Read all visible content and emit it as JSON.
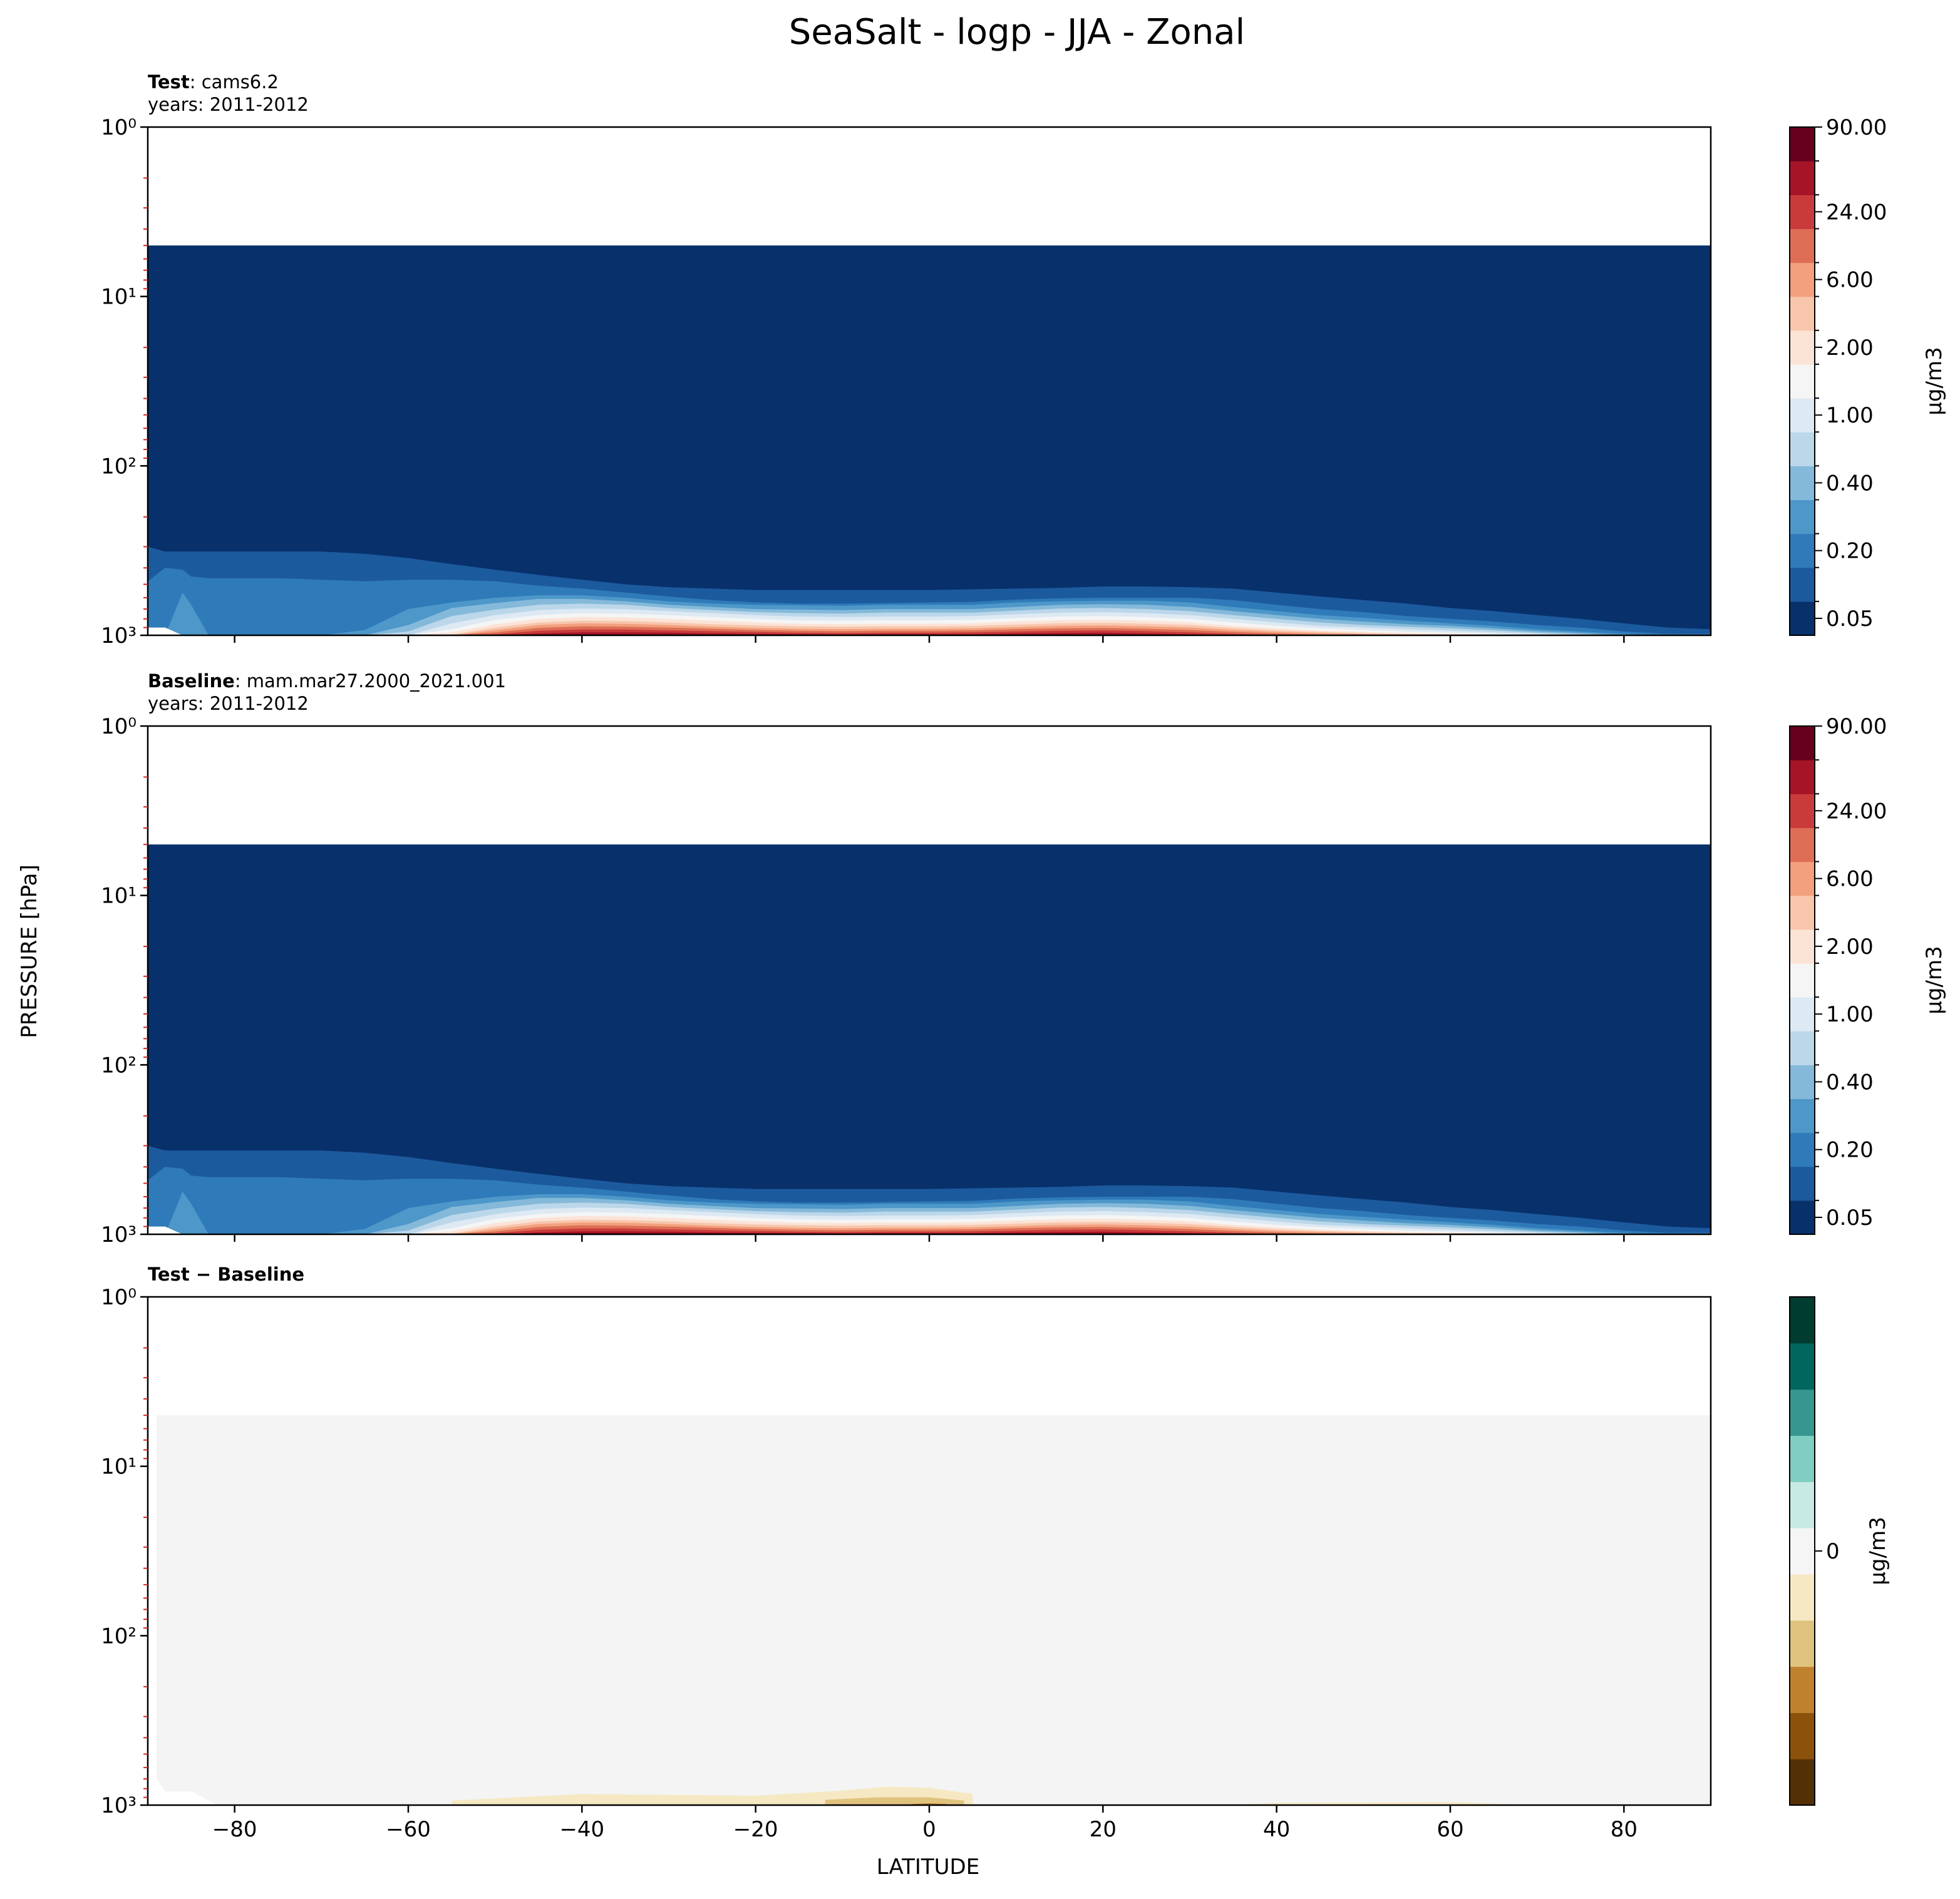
{
  "figure": {
    "title": "SeaSalt - logp - JJA - Zonal",
    "ylabel": "PRESSURE [hPa]",
    "xlabel": "LATITUDE"
  },
  "panels": [
    {
      "id": "test",
      "header_bold": "Test",
      "header_rest": ": cams6.2",
      "subheader": "years: 2011-2012",
      "cbar_label": "μg/m3",
      "cbar_ticks": [
        "0.05",
        "0.20",
        "0.40",
        "1.00",
        "2.00",
        "6.00",
        "24.00",
        "90.00"
      ]
    },
    {
      "id": "baseline",
      "header_bold": "Baseline",
      "header_rest": ": mam.mar27.2000_2021.001",
      "subheader": "years: 2011-2012",
      "cbar_label": "μg/m3",
      "cbar_ticks": [
        "0.05",
        "0.20",
        "0.40",
        "1.00",
        "2.00",
        "6.00",
        "24.00",
        "90.00"
      ]
    },
    {
      "id": "diff",
      "header_bold": "Test − Baseline",
      "header_rest": "",
      "subheader": "",
      "cbar_label": "μg/m3",
      "cbar_ticks": [
        "0"
      ]
    }
  ],
  "colors": {
    "abs_cmap": [
      "#08306b",
      "#1c5a9e",
      "#2f7ab9",
      "#4d97c9",
      "#85b9d9",
      "#bcd7ea",
      "#dde9f3",
      "#f5f5f5",
      "#fbe3d6",
      "#f8c6ac",
      "#f2a07d",
      "#dd6e55",
      "#c93a3b",
      "#a61527",
      "#67001f"
    ],
    "diff_cmap": [
      "#543005",
      "#8c510a",
      "#bf812d",
      "#dfc27d",
      "#f6e8c3",
      "#f5f5f5",
      "#c7eae5",
      "#80cdc1",
      "#35978f",
      "#01665e",
      "#003c30"
    ],
    "background_fill": "#f3f4f3"
  },
  "chart_data": {
    "type": "contour",
    "x": {
      "label": "LATITUDE",
      "range": [
        -90,
        90
      ],
      "ticks": [
        -80,
        -60,
        -40,
        -20,
        0,
        20,
        40,
        60,
        80
      ]
    },
    "y": {
      "label": "PRESSURE [hPa]",
      "scale": "log",
      "inverted": true,
      "range": [
        1,
        1000
      ],
      "tick_labels": [
        "10⁰",
        "10¹",
        "10²",
        "10³"
      ],
      "data_top_hPa": 5
    },
    "abs_levels": [
      "0.05",
      "0.20",
      "0.40",
      "1.00",
      "2.00",
      "6.00",
      "24.00",
      "90.00"
    ],
    "abs_level_boundaries_from_level_0": {
      "x": [
        -90,
        -88,
        -86,
        -85,
        -83,
        -80,
        -75,
        -70,
        -65,
        -60,
        -55,
        -50,
        -45,
        -40,
        -35,
        -30,
        -25,
        -20,
        -15,
        -10,
        -5,
        0,
        5,
        10,
        15,
        20,
        25,
        30,
        35,
        40,
        45,
        50,
        55,
        60,
        65,
        70,
        75,
        80,
        85,
        90
      ],
      "comment_level": "pressure [hPa] where concentration exceeds each band; index 1 = first band above background",
      "p": [
        [
          300,
          320,
          320,
          320,
          320,
          320,
          320,
          320,
          330,
          350,
          380,
          410,
          440,
          470,
          500,
          520,
          530,
          540,
          540,
          540,
          540,
          540,
          535,
          530,
          525,
          515,
          515,
          520,
          530,
          560,
          590,
          620,
          650,
          690,
          720,
          760,
          800,
          850,
          900,
          920
        ],
        [
          480,
          400,
          410,
          450,
          460,
          460,
          460,
          470,
          480,
          470,
          470,
          480,
          510,
          530,
          560,
          590,
          620,
          640,
          650,
          650,
          645,
          640,
          635,
          615,
          605,
          600,
          600,
          600,
          620,
          660,
          700,
          730,
          770,
          800,
          830,
          870,
          900,
          950,
          980,
          980
        ],
        [
          1000,
          1000,
          560,
          660,
          1000,
          1000,
          1000,
          1000,
          930,
          700,
          640,
          600,
          580,
          580,
          600,
          630,
          650,
          660,
          665,
          670,
          660,
          660,
          660,
          640,
          630,
          625,
          625,
          640,
          680,
          720,
          760,
          790,
          820,
          850,
          880,
          920,
          950,
          980,
          1000,
          1000
        ],
        [
          1000,
          1000,
          1000,
          1000,
          1000,
          1000,
          1000,
          1000,
          1000,
          870,
          690,
          645,
          610,
          610,
          630,
          660,
          680,
          700,
          705,
          710,
          700,
          700,
          700,
          680,
          660,
          655,
          660,
          680,
          720,
          760,
          800,
          830,
          860,
          880,
          910,
          945,
          970,
          1000,
          1000,
          1000
        ],
        [
          1000,
          1000,
          1000,
          1000,
          1000,
          1000,
          1000,
          1000,
          1000,
          950,
          770,
          705,
          660,
          650,
          660,
          690,
          710,
          730,
          740,
          745,
          735,
          735,
          735,
          715,
          695,
          690,
          700,
          720,
          760,
          800,
          840,
          870,
          890,
          910,
          935,
          965,
          985,
          1000,
          1000,
          1000
        ],
        [
          1000,
          1000,
          1000,
          1000,
          1000,
          1000,
          1000,
          1000,
          1000,
          1000,
          850,
          760,
          710,
          695,
          700,
          720,
          740,
          760,
          775,
          780,
          775,
          775,
          770,
          750,
          735,
          730,
          740,
          760,
          800,
          840,
          880,
          900,
          920,
          940,
          960,
          980,
          1000,
          1000,
          1000,
          1000
        ],
        [
          1000,
          1000,
          1000,
          1000,
          1000,
          1000,
          1000,
          1000,
          1000,
          1000,
          920,
          810,
          760,
          740,
          745,
          760,
          780,
          800,
          815,
          820,
          815,
          815,
          810,
          790,
          775,
          770,
          780,
          800,
          840,
          880,
          910,
          930,
          950,
          965,
          980,
          995,
          1000,
          1000,
          1000,
          1000
        ],
        [
          1000,
          1000,
          1000,
          1000,
          1000,
          1000,
          1000,
          1000,
          1000,
          1000,
          960,
          860,
          800,
          780,
          785,
          800,
          820,
          840,
          855,
          860,
          855,
          855,
          850,
          830,
          815,
          810,
          820,
          840,
          880,
          910,
          940,
          955,
          970,
          980,
          990,
          1000,
          1000,
          1000,
          1000,
          1000
        ],
        [
          1000,
          1000,
          1000,
          1000,
          1000,
          1000,
          1000,
          1000,
          1000,
          1000,
          990,
          900,
          840,
          820,
          825,
          840,
          860,
          875,
          885,
          890,
          885,
          885,
          880,
          865,
          850,
          845,
          855,
          870,
          905,
          935,
          955,
          970,
          985,
          990,
          1000,
          1000,
          1000,
          1000,
          1000,
          1000
        ],
        [
          1000,
          1000,
          1000,
          1000,
          1000,
          1000,
          1000,
          1000,
          1000,
          1000,
          1000,
          930,
          870,
          850,
          855,
          870,
          890,
          905,
          915,
          920,
          915,
          915,
          910,
          895,
          880,
          875,
          885,
          900,
          930,
          955,
          970,
          985,
          995,
          1000,
          1000,
          1000,
          1000,
          1000,
          1000,
          1000
        ],
        [
          1000,
          1000,
          1000,
          1000,
          1000,
          1000,
          1000,
          1000,
          1000,
          1000,
          1000,
          960,
          905,
          885,
          890,
          900,
          915,
          930,
          940,
          945,
          940,
          940,
          935,
          920,
          910,
          905,
          915,
          930,
          955,
          975,
          990,
          1000,
          1000,
          1000,
          1000,
          1000,
          1000,
          1000,
          1000,
          1000
        ],
        [
          1000,
          1000,
          1000,
          1000,
          1000,
          1000,
          1000,
          1000,
          1000,
          1000,
          1000,
          985,
          940,
          925,
          925,
          935,
          945,
          955,
          965,
          970,
          965,
          965,
          960,
          950,
          940,
          935,
          945,
          960,
          980,
          995,
          1000,
          1000,
          1000,
          1000,
          1000,
          1000,
          1000,
          1000,
          1000,
          1000
        ],
        [
          1000,
          1000,
          1000,
          1000,
          1000,
          1000,
          1000,
          1000,
          1000,
          1000,
          1000,
          1000,
          975,
          960,
          960,
          965,
          975,
          980,
          985,
          990,
          985,
          985,
          985,
          975,
          970,
          965,
          975,
          985,
          1000,
          1000,
          1000,
          1000,
          1000,
          1000,
          1000,
          1000,
          1000,
          1000,
          1000,
          1000
        ],
        [
          1000,
          1000,
          1000,
          1000,
          1000,
          1000,
          1000,
          1000,
          1000,
          1000,
          1000,
          1000,
          1000,
          990,
          990,
          995,
          1000,
          1000,
          1000,
          1000,
          1000,
          1000,
          1000,
          1000,
          995,
          995,
          1000,
          1000,
          1000,
          1000,
          1000,
          1000,
          1000,
          1000,
          1000,
          1000,
          1000,
          1000,
          1000,
          1000
        ]
      ]
    },
    "diff_field": {
      "background_level": 5,
      "no_data_near_surface_west_of": -85,
      "negative_patches": [
        {
          "level": 4,
          "x": [
            -55,
            -40,
            -30,
            -20,
            -10,
            -5,
            0,
            5
          ],
          "p_top": [
            940,
            860,
            870,
            880,
            820,
            780,
            790,
            860
          ]
        },
        {
          "level": 3,
          "x": [
            -12,
            -6,
            0,
            4
          ],
          "p_top": [
            930,
            900,
            900,
            940
          ]
        },
        {
          "level": 2,
          "x": [
            -2,
            0,
            2
          ],
          "p_top": [
            985,
            975,
            985
          ]
        }
      ]
    }
  }
}
